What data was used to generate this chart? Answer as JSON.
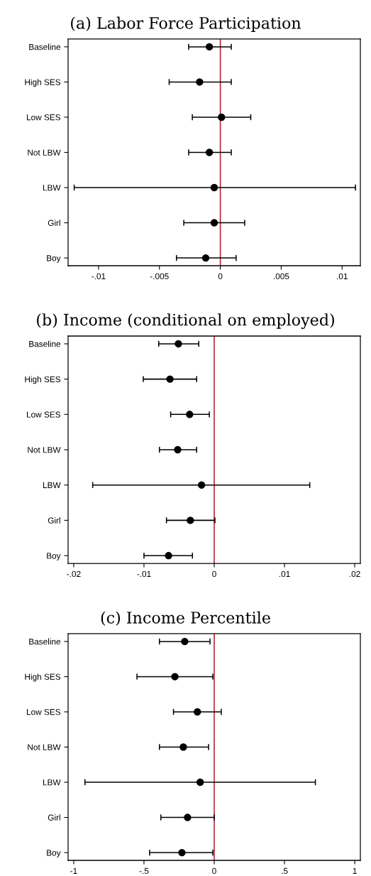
{
  "chart_data": [
    {
      "type": "scatter",
      "orientation": "horizontal",
      "title": "(a) Labor Force Participation",
      "categories": [
        "Baseline",
        "High SES",
        "Low SES",
        "Not LBW",
        "LBW",
        "Girl",
        "Boy"
      ],
      "marker": "circle",
      "grid": false,
      "series": [
        {
          "color": "#000000",
          "values": [
            -0.0009,
            -0.0017,
            0.0001,
            -0.0009,
            -0.0005,
            -0.0005,
            -0.0012
          ],
          "errors": [
            [
              -0.0026,
              0.0009
            ],
            [
              -0.0042,
              0.0009
            ],
            [
              -0.0023,
              0.0025
            ],
            [
              -0.0026,
              0.0009
            ],
            [
              -0.012,
              0.0111
            ],
            [
              -0.003,
              0.002
            ],
            [
              -0.0036,
              0.0013
            ]
          ]
        }
      ],
      "xlim": [
        -0.0125,
        0.0115
      ],
      "xticks": [
        {
          "value": -0.01,
          "label": "-.01"
        },
        {
          "value": -0.005,
          "label": "-.005"
        },
        0,
        {
          "value": 0.005,
          "label": ".005"
        },
        {
          "value": 0.01,
          "label": ".01"
        }
      ],
      "ref_lines": [
        {
          "axis": "x",
          "value": 0,
          "color": "#b5172f"
        }
      ]
    },
    {
      "type": "scatter",
      "orientation": "horizontal",
      "title": "(b) Income (conditional on employed)",
      "categories": [
        "Baseline",
        "High SES",
        "Low SES",
        "Not LBW",
        "LBW",
        "Girl",
        "Boy"
      ],
      "marker": "circle",
      "grid": false,
      "series": [
        {
          "color": "#000000",
          "values": [
            -0.0051,
            -0.0063,
            -0.0035,
            -0.0052,
            -0.0018,
            -0.0034,
            -0.0065
          ],
          "errors": [
            [
              -0.0079,
              -0.0022
            ],
            [
              -0.0101,
              -0.0025
            ],
            [
              -0.0062,
              -0.0007
            ],
            [
              -0.0078,
              -0.0025
            ],
            [
              -0.0173,
              0.0136
            ],
            [
              -0.0068,
              0.0001
            ],
            [
              -0.01,
              -0.0031
            ]
          ]
        }
      ],
      "xlim": [
        -0.0208,
        0.0208
      ],
      "xticks": [
        {
          "value": -0.02,
          "label": "-.02"
        },
        {
          "value": -0.01,
          "label": "-.01"
        },
        0,
        {
          "value": 0.01,
          "label": ".01"
        },
        {
          "value": 0.02,
          "label": ".02"
        }
      ],
      "ref_lines": [
        {
          "axis": "x",
          "value": 0,
          "color": "#b5172f"
        }
      ]
    },
    {
      "type": "scatter",
      "orientation": "horizontal",
      "title": "(c) Income Percentile",
      "categories": [
        "Baseline",
        "High SES",
        "Low SES",
        "Not LBW",
        "LBW",
        "Girl",
        "Boy"
      ],
      "marker": "circle",
      "grid": false,
      "series": [
        {
          "color": "#000000",
          "values": [
            -0.21,
            -0.28,
            -0.12,
            -0.22,
            -0.1,
            -0.19,
            -0.23
          ],
          "errors": [
            [
              -0.39,
              -0.03
            ],
            [
              -0.55,
              -0.01
            ],
            [
              -0.29,
              0.05
            ],
            [
              -0.39,
              -0.04
            ],
            [
              -0.92,
              0.72
            ],
            [
              -0.38,
              0.0
            ],
            [
              -0.46,
              -0.01
            ]
          ]
        }
      ],
      "xlim": [
        -1.04,
        1.04
      ],
      "xticks": [
        -1,
        {
          "value": -0.5,
          "label": "-.5"
        },
        0,
        {
          "value": 0.5,
          "label": ".5"
        },
        1
      ],
      "ref_lines": [
        {
          "axis": "x",
          "value": 0,
          "color": "#b5172f"
        }
      ]
    }
  ]
}
